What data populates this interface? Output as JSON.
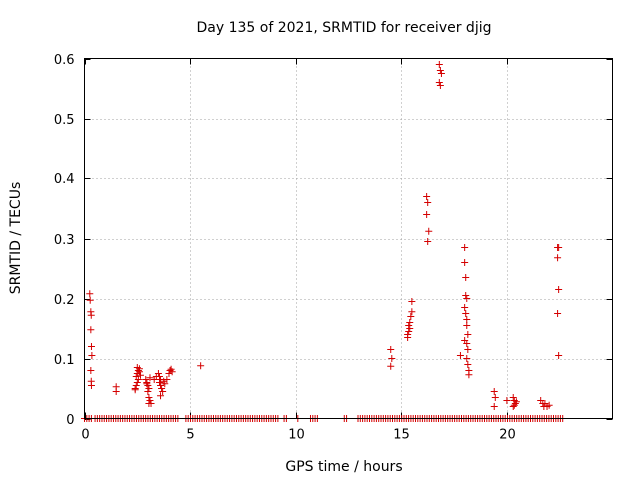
{
  "chart_data": {
    "type": "scatter",
    "title": "Day 135 of 2021, SRMTID for receiver djig",
    "xlabel": "GPS time / hours",
    "ylabel": "SRMTID / TECUs",
    "xlim": [
      0,
      25
    ],
    "ylim": [
      0,
      0.6
    ],
    "x_ticks": [
      0,
      5,
      10,
      15,
      20
    ],
    "y_ticks": [
      0,
      0.1,
      0.2,
      0.3,
      0.4,
      0.5,
      0.6
    ],
    "x_tick_labels": [
      "0",
      "5",
      "10",
      "15",
      "20"
    ],
    "y_tick_labels": [
      "0",
      "0.1",
      "0.2",
      "0.3",
      "0.4",
      "0.5",
      "0.6"
    ],
    "grid": true,
    "marker": "+",
    "color": "#d40000",
    "series": [
      {
        "name": "SRMTID",
        "points": [
          [
            0.25,
            0.208
          ],
          [
            0.27,
            0.197
          ],
          [
            0.3,
            0.178
          ],
          [
            0.32,
            0.172
          ],
          [
            0.3,
            0.148
          ],
          [
            0.33,
            0.12
          ],
          [
            0.35,
            0.105
          ],
          [
            0.3,
            0.08
          ],
          [
            0.32,
            0.062
          ],
          [
            0.33,
            0.055
          ],
          [
            1.5,
            0.053
          ],
          [
            1.5,
            0.045
          ],
          [
            2.4,
            0.05
          ],
          [
            2.45,
            0.055
          ],
          [
            2.5,
            0.06
          ],
          [
            2.55,
            0.065
          ],
          [
            2.45,
            0.07
          ],
          [
            2.5,
            0.075
          ],
          [
            2.55,
            0.08
          ],
          [
            2.6,
            0.083
          ],
          [
            2.5,
            0.085
          ],
          [
            2.6,
            0.078
          ],
          [
            2.65,
            0.072
          ],
          [
            2.4,
            0.048
          ],
          [
            2.9,
            0.065
          ],
          [
            2.95,
            0.06
          ],
          [
            3.0,
            0.055
          ],
          [
            3.05,
            0.05
          ],
          [
            3.0,
            0.045
          ],
          [
            3.05,
            0.035
          ],
          [
            3.1,
            0.03
          ],
          [
            3.05,
            0.025
          ],
          [
            3.15,
            0.025
          ],
          [
            2.95,
            0.058
          ],
          [
            3.1,
            0.068
          ],
          [
            3.3,
            0.065
          ],
          [
            3.4,
            0.07
          ],
          [
            3.5,
            0.075
          ],
          [
            3.55,
            0.07
          ],
          [
            3.6,
            0.065
          ],
          [
            3.55,
            0.06
          ],
          [
            3.6,
            0.055
          ],
          [
            3.65,
            0.05
          ],
          [
            3.7,
            0.045
          ],
          [
            3.6,
            0.038
          ],
          [
            3.75,
            0.062
          ],
          [
            3.8,
            0.058
          ],
          [
            3.9,
            0.065
          ],
          [
            4.0,
            0.075
          ],
          [
            4.05,
            0.08
          ],
          [
            4.1,
            0.082
          ],
          [
            4.15,
            0.078
          ],
          [
            5.5,
            0.088
          ],
          [
            14.5,
            0.115
          ],
          [
            14.55,
            0.1
          ],
          [
            14.5,
            0.087
          ],
          [
            15.3,
            0.14
          ],
          [
            15.35,
            0.145
          ],
          [
            15.4,
            0.15
          ],
          [
            15.35,
            0.155
          ],
          [
            15.4,
            0.16
          ],
          [
            15.3,
            0.135
          ],
          [
            15.45,
            0.17
          ],
          [
            15.5,
            0.178
          ],
          [
            15.5,
            0.195
          ],
          [
            16.2,
            0.37
          ],
          [
            16.25,
            0.36
          ],
          [
            16.2,
            0.34
          ],
          [
            16.3,
            0.312
          ],
          [
            16.25,
            0.295
          ],
          [
            16.8,
            0.59
          ],
          [
            16.85,
            0.58
          ],
          [
            16.9,
            0.575
          ],
          [
            16.8,
            0.56
          ],
          [
            16.85,
            0.555
          ],
          [
            17.8,
            0.105
          ],
          [
            18.0,
            0.285
          ],
          [
            18.0,
            0.26
          ],
          [
            18.05,
            0.235
          ],
          [
            18.05,
            0.205
          ],
          [
            18.1,
            0.2
          ],
          [
            18.0,
            0.185
          ],
          [
            18.05,
            0.175
          ],
          [
            18.1,
            0.165
          ],
          [
            18.1,
            0.155
          ],
          [
            18.15,
            0.14
          ],
          [
            18.0,
            0.13
          ],
          [
            18.1,
            0.125
          ],
          [
            18.15,
            0.115
          ],
          [
            18.1,
            0.1
          ],
          [
            18.15,
            0.09
          ],
          [
            18.2,
            0.08
          ],
          [
            18.2,
            0.073
          ],
          [
            19.4,
            0.045
          ],
          [
            19.45,
            0.035
          ],
          [
            19.4,
            0.02
          ],
          [
            20.0,
            0.03
          ],
          [
            20.3,
            0.035
          ],
          [
            20.35,
            0.03
          ],
          [
            20.4,
            0.025
          ],
          [
            20.35,
            0.022
          ],
          [
            20.3,
            0.02
          ],
          [
            20.45,
            0.028
          ],
          [
            21.6,
            0.03
          ],
          [
            21.7,
            0.025
          ],
          [
            21.8,
            0.025
          ],
          [
            21.9,
            0.02
          ],
          [
            22.0,
            0.022
          ],
          [
            21.75,
            0.02
          ],
          [
            22.4,
            0.285
          ],
          [
            22.45,
            0.285
          ],
          [
            22.4,
            0.268
          ],
          [
            22.45,
            0.215
          ],
          [
            22.4,
            0.175
          ],
          [
            22.45,
            0.105
          ]
        ]
      }
    ],
    "zero_band": [
      [
        0.0,
        0.35
      ],
      [
        0.5,
        4.45
      ],
      [
        4.8,
        9.2
      ],
      [
        9.45,
        9.6
      ],
      [
        10.1,
        10.2
      ],
      [
        10.7,
        11.05
      ],
      [
        12.3,
        12.45
      ],
      [
        12.95,
        22.7
      ]
    ]
  }
}
